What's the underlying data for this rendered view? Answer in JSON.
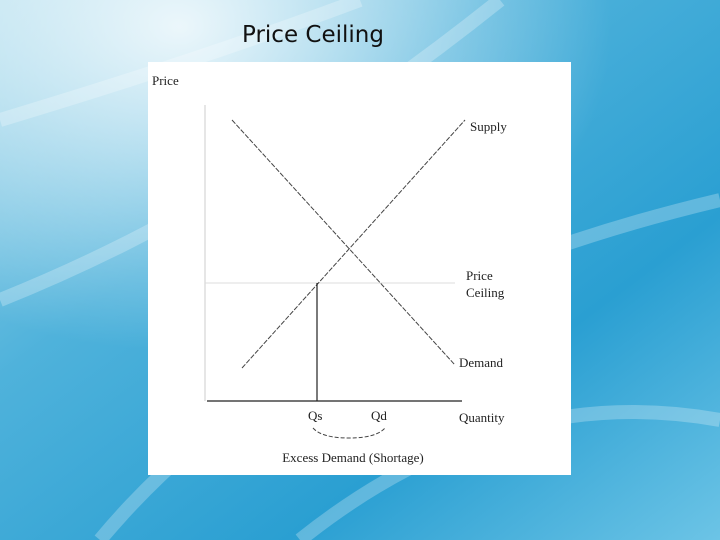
{
  "header": {
    "title": "Price Ceiling"
  },
  "diagram": {
    "y_axis_label": "Price",
    "x_axis_label": "Quantity",
    "supply_label": "Supply",
    "demand_label": "Demand",
    "ceiling_label": [
      "Price",
      "Ceiling"
    ],
    "qs_label": "Qs",
    "qd_label": "Qd",
    "shortage_label": "Excess Demand (Shortage)"
  }
}
